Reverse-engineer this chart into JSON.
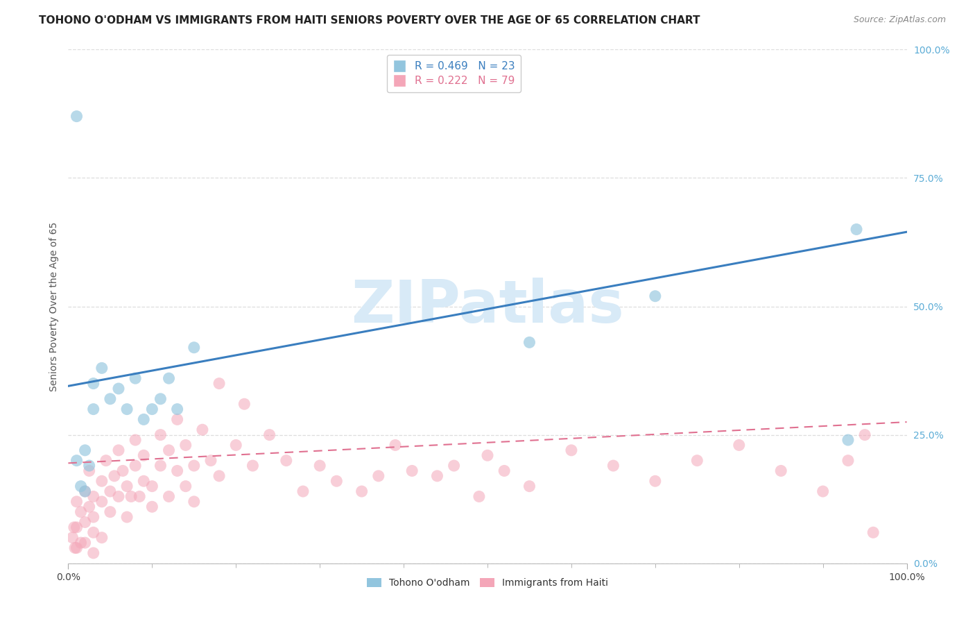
{
  "title": "TOHONO O'ODHAM VS IMMIGRANTS FROM HAITI SENIORS POVERTY OVER THE AGE OF 65 CORRELATION CHART",
  "source": "Source: ZipAtlas.com",
  "ylabel": "Seniors Poverty Over the Age of 65",
  "blue_label": "Tohono O'odham",
  "pink_label": "Immigrants from Haiti",
  "blue_R": 0.469,
  "blue_N": 23,
  "pink_R": 0.222,
  "pink_N": 79,
  "blue_color": "#92c5de",
  "pink_color": "#f4a6b8",
  "blue_line_color": "#3a7ebf",
  "pink_line_color": "#e07090",
  "background_color": "#ffffff",
  "watermark_color": "#d8eaf7",
  "tick_color": "#5bacd6",
  "xlim": [
    0,
    1
  ],
  "ylim": [
    0,
    1
  ],
  "blue_scatter_x": [
    0.01,
    0.01,
    0.015,
    0.02,
    0.02,
    0.025,
    0.03,
    0.03,
    0.04,
    0.05,
    0.06,
    0.07,
    0.08,
    0.09,
    0.1,
    0.11,
    0.12,
    0.13,
    0.15,
    0.55,
    0.7,
    0.93,
    0.94
  ],
  "blue_scatter_y": [
    0.87,
    0.2,
    0.15,
    0.14,
    0.22,
    0.19,
    0.35,
    0.3,
    0.38,
    0.32,
    0.34,
    0.3,
    0.36,
    0.28,
    0.3,
    0.32,
    0.36,
    0.3,
    0.42,
    0.43,
    0.52,
    0.24,
    0.65
  ],
  "pink_scatter_x": [
    0.005,
    0.007,
    0.008,
    0.01,
    0.01,
    0.01,
    0.015,
    0.015,
    0.02,
    0.02,
    0.02,
    0.025,
    0.025,
    0.03,
    0.03,
    0.03,
    0.03,
    0.04,
    0.04,
    0.04,
    0.045,
    0.05,
    0.05,
    0.055,
    0.06,
    0.06,
    0.065,
    0.07,
    0.07,
    0.075,
    0.08,
    0.08,
    0.085,
    0.09,
    0.09,
    0.1,
    0.1,
    0.11,
    0.11,
    0.12,
    0.12,
    0.13,
    0.13,
    0.14,
    0.14,
    0.15,
    0.15,
    0.16,
    0.17,
    0.18,
    0.18,
    0.2,
    0.21,
    0.22,
    0.24,
    0.26,
    0.28,
    0.3,
    0.32,
    0.35,
    0.37,
    0.39,
    0.41,
    0.44,
    0.46,
    0.49,
    0.5,
    0.52,
    0.55,
    0.6,
    0.65,
    0.7,
    0.75,
    0.8,
    0.85,
    0.9,
    0.93,
    0.95,
    0.96
  ],
  "pink_scatter_y": [
    0.05,
    0.07,
    0.03,
    0.12,
    0.07,
    0.03,
    0.1,
    0.04,
    0.14,
    0.08,
    0.04,
    0.11,
    0.18,
    0.09,
    0.13,
    0.06,
    0.02,
    0.16,
    0.12,
    0.05,
    0.2,
    0.14,
    0.1,
    0.17,
    0.13,
    0.22,
    0.18,
    0.15,
    0.09,
    0.13,
    0.19,
    0.24,
    0.13,
    0.16,
    0.21,
    0.11,
    0.15,
    0.19,
    0.25,
    0.13,
    0.22,
    0.18,
    0.28,
    0.15,
    0.23,
    0.19,
    0.12,
    0.26,
    0.2,
    0.17,
    0.35,
    0.23,
    0.31,
    0.19,
    0.25,
    0.2,
    0.14,
    0.19,
    0.16,
    0.14,
    0.17,
    0.23,
    0.18,
    0.17,
    0.19,
    0.13,
    0.21,
    0.18,
    0.15,
    0.22,
    0.19,
    0.16,
    0.2,
    0.23,
    0.18,
    0.14,
    0.2,
    0.25,
    0.06
  ],
  "blue_line_x": [
    0,
    1
  ],
  "blue_line_y": [
    0.345,
    0.645
  ],
  "pink_line_x": [
    0,
    1
  ],
  "pink_line_y": [
    0.195,
    0.275
  ],
  "watermark": "ZIPatlas",
  "title_fontsize": 11,
  "axis_label_fontsize": 10,
  "tick_fontsize": 10,
  "legend_fontsize": 11
}
